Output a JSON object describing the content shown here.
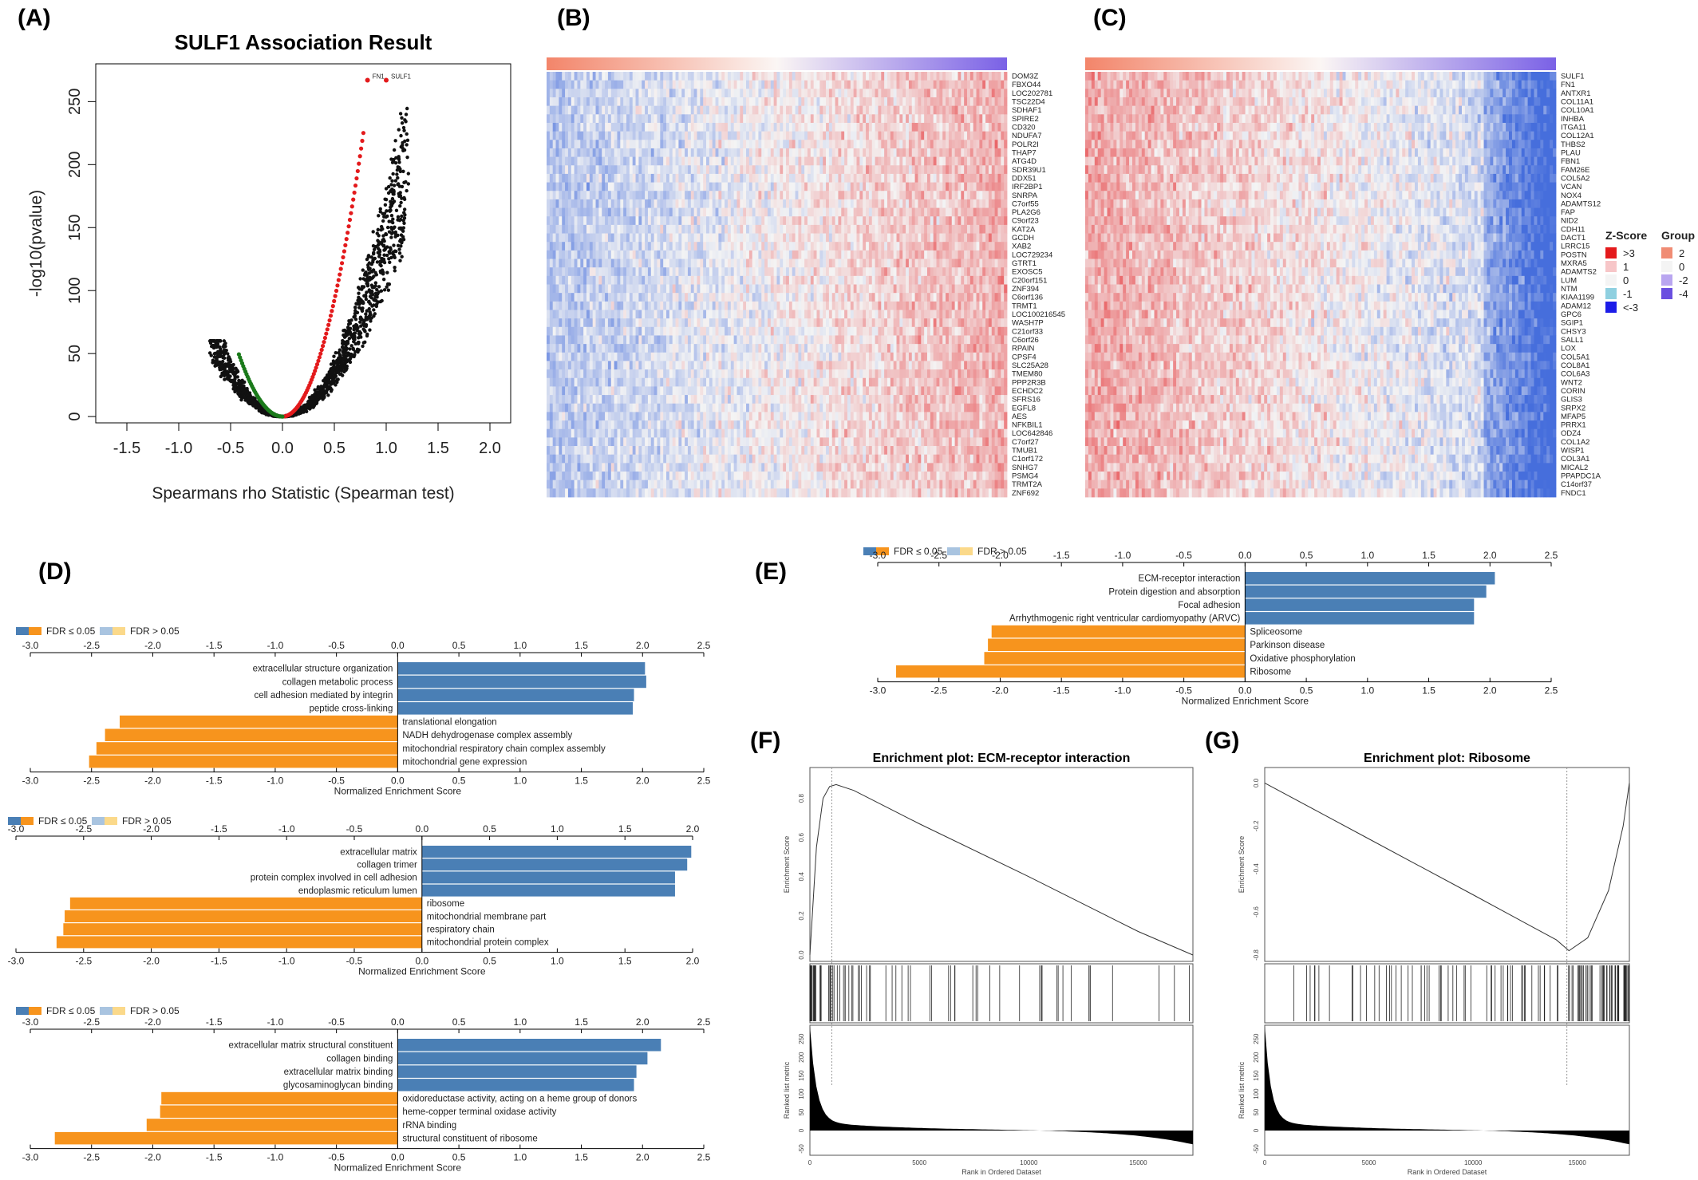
{
  "panels": {
    "A": "(A)",
    "B": "(B)",
    "C": "(C)",
    "D": "(D)",
    "E": "(E)",
    "F": "(F)",
    "G": "(G)"
  },
  "colors": {
    "up": "#4a7fb5",
    "down": "#f7941d",
    "up_light": "#a9c4e0",
    "down_light": "#fbd98a",
    "scatter_red": "#e31a1c",
    "scatter_green": "#1a7a1a",
    "hm_high": "#e7474a",
    "hm_mid": "#f4f4f4",
    "hm_low": "#2b2bdf"
  },
  "chart_data": [
    {
      "id": "A",
      "type": "scatter",
      "title": "SULF1 Association Result",
      "xlabel": "Spearmans rho Statistic (Spearman test)",
      "ylabel": "-log10(pvalue)",
      "xlim": [
        -1.8,
        2.2
      ],
      "ylim": [
        -5,
        280
      ],
      "xticks": [
        "-1.5",
        "-1.0",
        "-0.5",
        "0.0",
        "0.5",
        "1.0",
        "1.5",
        "2.0"
      ],
      "xtick_values": [
        -1.5,
        -1.0,
        -0.5,
        0.0,
        0.5,
        1.0,
        1.5,
        2.0
      ],
      "yticks": [
        "0",
        "50",
        "100",
        "150",
        "200",
        "250"
      ],
      "ytick_values": [
        0,
        50,
        100,
        150,
        200,
        250
      ],
      "labeled_points": [
        {
          "label": "FN1",
          "x": 0.82,
          "y": 267
        },
        {
          "label": "SULF1",
          "x": 1.0,
          "y": 267
        }
      ]
    },
    {
      "id": "B",
      "type": "heatmap",
      "genes": [
        "DOM3Z",
        "FBXO44",
        "LOC202781",
        "TSC22D4",
        "SDHAF1",
        "SPIRE2",
        "CD320",
        "NDUFA7",
        "POLR2I",
        "THAP7",
        "ATG4D",
        "SDR39U1",
        "DDX51",
        "IRF2BP1",
        "SNRPA",
        "C7orf55",
        "PLA2G6",
        "C9orf23",
        "KAT2A",
        "GCDH",
        "XAB2",
        "LOC729234",
        "GTRT1",
        "EXOSC5",
        "C20orf151",
        "ZNF394",
        "C6orf136",
        "TRMT1",
        "LOC100216545",
        "WASH7P",
        "C21orf33",
        "C6orf26",
        "RPAIN",
        "CPSF4",
        "SLC25A28",
        "TMEM80",
        "PPP2R3B",
        "ECHDC2",
        "SFRS16",
        "EGFL8",
        "AES",
        "NFKBIL1",
        "LOC642846",
        "C7orf27",
        "TMUB1",
        "C1orf172",
        "SNHG7",
        "PSMG4",
        "TRMT2A",
        "ZNF692"
      ]
    },
    {
      "id": "C",
      "type": "heatmap",
      "genes": [
        "SULF1",
        "FN1",
        "ANTXR1",
        "COL11A1",
        "COL10A1",
        "INHBA",
        "ITGA11",
        "COL12A1",
        "THBS2",
        "PLAU",
        "FBN1",
        "FAM26E",
        "COL5A2",
        "VCAN",
        "NOX4",
        "ADAMTS12",
        "FAP",
        "NID2",
        "CDH11",
        "DACT1",
        "LRRC15",
        "POSTN",
        "MXRA5",
        "ADAMTS2",
        "LUM",
        "NTM",
        "KIAA1199",
        "ADAM12",
        "GPC6",
        "SGIP1",
        "CHSY3",
        "SALL1",
        "LOX",
        "COL5A1",
        "COL8A1",
        "COL6A3",
        "WNT2",
        "CORIN",
        "GLIS3",
        "SRPX2",
        "MFAP5",
        "PRRX1",
        "ODZ4",
        "COL1A2",
        "WISP1",
        "COL3A1",
        "MICAL2",
        "PPAPDC1A",
        "C14orf37",
        "FNDC1"
      ],
      "legend": {
        "zscore_title": "Z-Score",
        "zscore_items": [
          ">3",
          "1",
          "0",
          "-1",
          "<-3"
        ],
        "zscore_colors": [
          "#e41a1c",
          "#f7c6c8",
          "#f4f4f4",
          "#8fd0e0",
          "#1c1ce8"
        ],
        "group_title": "Group",
        "group_items": [
          "2",
          "0",
          "-2",
          "-4"
        ],
        "group_colors": [
          "#f08c74",
          "#f4f4f4",
          "#b9a6f0",
          "#6a4fe0"
        ]
      }
    },
    {
      "id": "D1",
      "type": "bar",
      "legend": [
        "FDR ≤ 0.05",
        "FDR > 0.05"
      ],
      "xlabel": "Normalized Enrichment Score",
      "xlim": [
        -3.0,
        2.5
      ],
      "ticks": [
        "-3.0",
        "-2.5",
        "-2.0",
        "-1.5",
        "-1.0",
        "-0.5",
        "0.0",
        "0.5",
        "1.0",
        "1.5",
        "2.0",
        "2.5"
      ],
      "categories": [
        "extracellular structure organization",
        "collagen metabolic process",
        "cell adhesion mediated by integrin",
        "peptide cross-linking",
        "translational elongation",
        "NADH dehydrogenase complex assembly",
        "mitochondrial respiratory chain complex assembly",
        "mitochondrial gene expression"
      ],
      "values": [
        2.02,
        2.03,
        1.93,
        1.92,
        -2.27,
        -2.39,
        -2.46,
        -2.52
      ]
    },
    {
      "id": "D2",
      "type": "bar",
      "legend": [
        "FDR ≤ 0.05",
        "FDR > 0.05"
      ],
      "xlabel": "Normalized Enrichment Score",
      "xlim": [
        -3.0,
        2.0
      ],
      "ticks": [
        "-3.0",
        "-2.5",
        "-2.0",
        "-1.5",
        "-1.0",
        "-0.5",
        "0.0",
        "0.5",
        "1.0",
        "1.5",
        "2.0"
      ],
      "categories": [
        "extracellular matrix",
        "collagen trimer",
        "protein complex involved in cell adhesion",
        "endoplasmic reticulum lumen",
        "ribosome",
        "mitochondrial membrane part",
        "respiratory chain",
        "mitochondrial protein complex"
      ],
      "values": [
        1.99,
        1.96,
        1.87,
        1.87,
        -2.6,
        -2.64,
        -2.65,
        -2.7
      ]
    },
    {
      "id": "D3",
      "type": "bar",
      "legend": [
        "FDR ≤ 0.05",
        "FDR > 0.05"
      ],
      "xlabel": "Normalized Enrichment Score",
      "xlim": [
        -3.0,
        2.5
      ],
      "ticks": [
        "-3.0",
        "-2.5",
        "-2.0",
        "-1.5",
        "-1.0",
        "-0.5",
        "0.0",
        "0.5",
        "1.0",
        "1.5",
        "2.0",
        "2.5"
      ],
      "categories": [
        "extracellular matrix structural constituent",
        "collagen binding",
        "extracellular matrix binding",
        "glycosaminoglycan binding",
        "oxidoreductase activity, acting on a heme group of donors",
        "heme-copper terminal oxidase activity",
        "rRNA binding",
        "structural constituent of ribosome"
      ],
      "values": [
        2.15,
        2.04,
        1.95,
        1.93,
        -1.93,
        -1.94,
        -2.05,
        -2.8
      ]
    },
    {
      "id": "E",
      "type": "bar",
      "legend": [
        "FDR ≤ 0.05",
        "FDR > 0.05"
      ],
      "xlabel": "Normalized Enrichment Score",
      "xlim": [
        -3.0,
        2.5
      ],
      "ticks": [
        "-3.0",
        "-2.5",
        "-2.0",
        "-1.5",
        "-1.0",
        "-0.5",
        "0.0",
        "0.5",
        "1.0",
        "1.5",
        "2.0",
        "2.5"
      ],
      "categories": [
        "ECM-receptor interaction",
        "Protein digestion and absorption",
        "Focal adhesion",
        "Arrhythmogenic right ventricular cardiomyopathy (ARVC)",
        "Spliceosome",
        "Parkinson disease",
        "Oxidative phosphorylation",
        "Ribosome"
      ],
      "values": [
        2.04,
        1.97,
        1.87,
        1.87,
        -2.07,
        -2.1,
        -2.13,
        -2.85
      ]
    },
    {
      "id": "F",
      "type": "line",
      "title": "Enrichment plot: ECM-receptor interaction",
      "ylabel_top": "Enrichment Score",
      "ylabel_bottom": "Ranked list metric",
      "xlabel": "Rank in Ordered Dataset",
      "yticks_top": [
        "0.0",
        "0.2",
        "0.4",
        "0.6",
        "0.8"
      ],
      "yticks_bottom": [
        "-50",
        "0",
        "50",
        "100",
        "150",
        "200",
        "250"
      ],
      "xticks": [
        "0",
        "5000",
        "10000",
        "15000"
      ],
      "x_max": 17500,
      "es_points": [
        [
          0,
          0
        ],
        [
          300,
          0.55
        ],
        [
          600,
          0.8
        ],
        [
          900,
          0.86
        ],
        [
          1200,
          0.87
        ],
        [
          2000,
          0.84
        ],
        [
          5000,
          0.67
        ],
        [
          10000,
          0.4
        ],
        [
          15000,
          0.12
        ],
        [
          17500,
          0
        ]
      ],
      "peak_rank": 1000
    },
    {
      "id": "G",
      "type": "line",
      "title": "Enrichment plot: Ribosome",
      "ylabel_top": "Enrichment Score",
      "ylabel_bottom": "Ranked list metric",
      "xlabel": "Rank in Ordered Dataset",
      "yticks_top": [
        "0.0",
        "-0.2",
        "-0.4",
        "-0.6",
        "-0.8"
      ],
      "yticks_bottom": [
        "-50",
        "0",
        "50",
        "100",
        "150",
        "200",
        "250"
      ],
      "xticks": [
        "0",
        "5000",
        "10000",
        "15000"
      ],
      "x_max": 17500,
      "es_points": [
        [
          0,
          0
        ],
        [
          5000,
          -0.26
        ],
        [
          10000,
          -0.52
        ],
        [
          14000,
          -0.73
        ],
        [
          14600,
          -0.78
        ],
        [
          15500,
          -0.72
        ],
        [
          16500,
          -0.5
        ],
        [
          17200,
          -0.2
        ],
        [
          17500,
          0
        ]
      ],
      "peak_rank": 14500
    }
  ]
}
